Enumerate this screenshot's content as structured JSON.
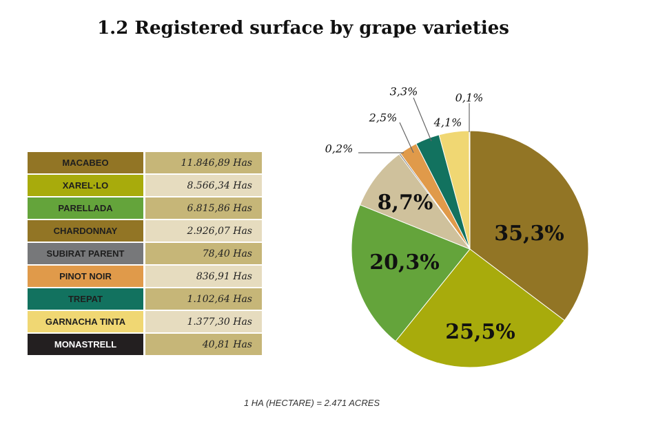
{
  "title": "1.2 Registered surface by grape varieties",
  "footnote": "1 HA (HECTARE) = 2.471 ACRES",
  "colors": {
    "row_value_dark": "#c6b678",
    "row_value_light": "#e6dcbf"
  },
  "table": {
    "rows": [
      {
        "name": "MACABEO",
        "value": "11.846,89 Has",
        "color": "#927525",
        "text_color": "#1e1e1e",
        "shade": "dark"
      },
      {
        "name": "XAREL·LO",
        "value": "8.566,34 Has",
        "color": "#a8ab0c",
        "text_color": "#1e1e1e",
        "shade": "light"
      },
      {
        "name": "PARELLADA",
        "value": "6.815,86 Has",
        "color": "#64a43b",
        "text_color": "#1e1e1e",
        "shade": "dark"
      },
      {
        "name": "CHARDONNAY",
        "value": "2.926,07 Has",
        "color": "#927525",
        "text_color": "#1e1e1e",
        "shade": "light"
      },
      {
        "name": "SUBIRAT PARENT",
        "value": "78,40 Has",
        "color": "#77787a",
        "text_color": "#1e1e1e",
        "shade": "dark"
      },
      {
        "name": "PINOT NOIR",
        "value": "836,91 Has",
        "color": "#e09a4a",
        "text_color": "#1e1e1e",
        "shade": "light"
      },
      {
        "name": "TREPAT",
        "value": "1.102,64 Has",
        "color": "#12725f",
        "text_color": "#1e1e1e",
        "shade": "dark"
      },
      {
        "name": "GARNACHA TINTA",
        "value": "1.377,30 Has",
        "color": "#f0d773",
        "text_color": "#1e1e1e",
        "shade": "light"
      },
      {
        "name": "MONASTRELL",
        "value": "40,81 Has",
        "color": "#231f20",
        "text_color": "#ffffff",
        "shade": "dark"
      }
    ]
  },
  "chart_data": {
    "type": "pie",
    "title": "1.2 Registered surface by grape varieties",
    "slices": [
      {
        "label": "35,3%",
        "value": 35.3,
        "color": "#927525"
      },
      {
        "label": "25,5%",
        "value": 25.5,
        "color": "#a8ab0c"
      },
      {
        "label": "20,3%",
        "value": 20.3,
        "color": "#64a43b"
      },
      {
        "label": "8,7%",
        "value": 8.7,
        "color": "#cfc19c"
      },
      {
        "label": "0,2%",
        "value": 0.2,
        "color": "#77787a"
      },
      {
        "label": "2,5%",
        "value": 2.5,
        "color": "#e09a4a"
      },
      {
        "label": "3,3%",
        "value": 3.3,
        "color": "#12725f"
      },
      {
        "label": "4,1%",
        "value": 4.1,
        "color": "#f0d773"
      },
      {
        "label": "0,1%",
        "value": 0.1,
        "color": "#231f20"
      }
    ]
  }
}
